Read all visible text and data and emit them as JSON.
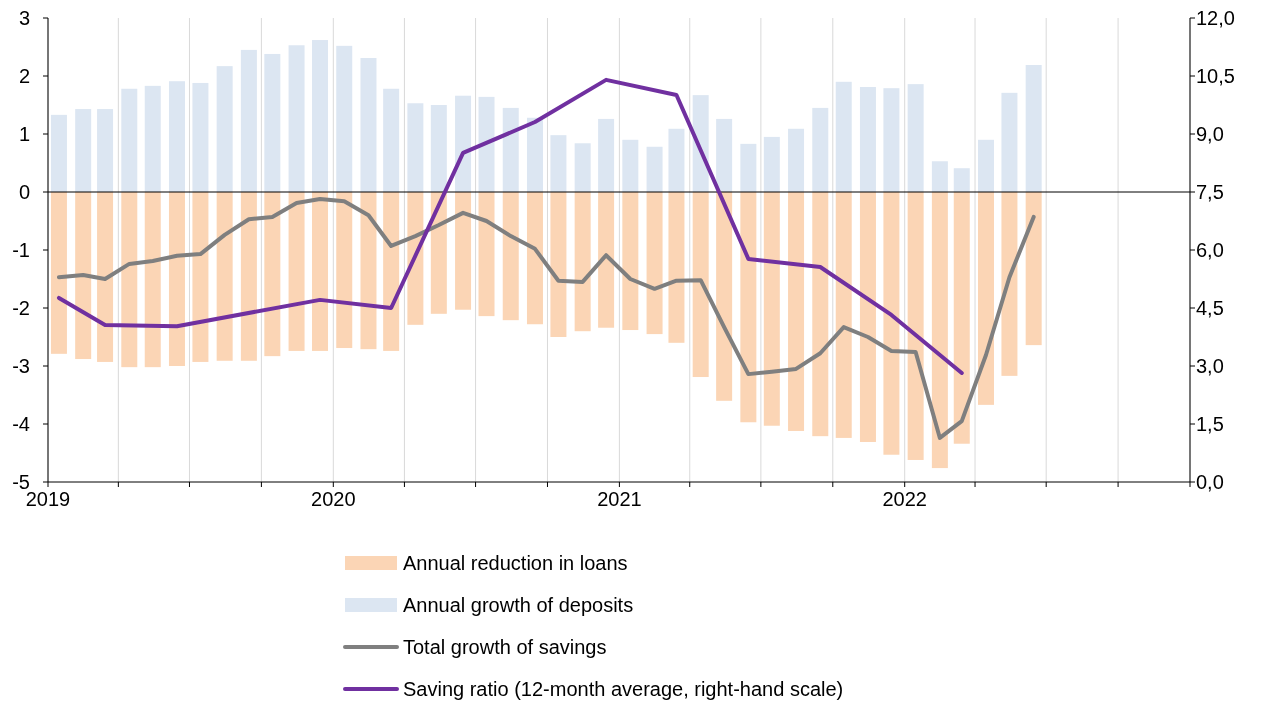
{
  "chart_data": {
    "type": "bar",
    "stacked": true,
    "legend": "bottom",
    "grid": "x",
    "xlim": [
      "2019-01-01",
      "2023-01-01"
    ],
    "xticks": [
      {
        "value": "2019-01-01",
        "label": "2019"
      },
      {
        "value": "2019-04-01",
        "label": null
      },
      {
        "value": "2019-07-01",
        "label": null
      },
      {
        "value": "2019-10-01",
        "label": null
      },
      {
        "value": "2020-01-01",
        "label": "2020"
      },
      {
        "value": "2020-04-01",
        "label": null
      },
      {
        "value": "2020-07-01",
        "label": null
      },
      {
        "value": "2020-10-01",
        "label": null
      },
      {
        "value": "2021-01-01",
        "label": "2021"
      },
      {
        "value": "2021-04-01",
        "label": null
      },
      {
        "value": "2021-07-01",
        "label": null
      },
      {
        "value": "2021-10-01",
        "label": null
      },
      {
        "value": "2022-01-01",
        "label": "2022"
      },
      {
        "value": "2022-04-01",
        "label": null
      },
      {
        "value": "2022-07-01",
        "label": null
      },
      {
        "value": "2022-10-01",
        "label": null
      },
      {
        "value": "2023-01-01",
        "label": null
      }
    ],
    "ylim": [
      -5,
      3
    ],
    "yticks": [
      -5,
      -4,
      -3,
      -2,
      -1,
      0,
      1,
      2,
      3
    ],
    "y2lim": [
      0,
      12
    ],
    "y2ticks": [
      {
        "value": 0,
        "label": "0,0"
      },
      {
        "value": 1.5,
        "label": "1,5"
      },
      {
        "value": 3,
        "label": "3,0"
      },
      {
        "value": 4.5,
        "label": "4,5"
      },
      {
        "value": 6,
        "label": "6,0"
      },
      {
        "value": 7.5,
        "label": "7,5"
      },
      {
        "value": 9,
        "label": "9,0"
      },
      {
        "value": 10.5,
        "label": "10,5"
      },
      {
        "value": 12,
        "label": "12,0"
      }
    ],
    "x": [
      "2019-01-15",
      "2019-02-15",
      "2019-03-15",
      "2019-04-15",
      "2019-05-15",
      "2019-06-15",
      "2019-07-15",
      "2019-08-15",
      "2019-09-15",
      "2019-10-15",
      "2019-11-15",
      "2019-12-15",
      "2020-01-15",
      "2020-02-15",
      "2020-03-15",
      "2020-04-15",
      "2020-05-15",
      "2020-06-15",
      "2020-07-15",
      "2020-08-15",
      "2020-09-15",
      "2020-10-15",
      "2020-11-15",
      "2020-12-15",
      "2021-01-15",
      "2021-02-15",
      "2021-03-15",
      "2021-04-15",
      "2021-05-15",
      "2021-06-15",
      "2021-07-15",
      "2021-08-15",
      "2021-09-15",
      "2021-10-15",
      "2021-11-15",
      "2021-12-15",
      "2022-01-15",
      "2022-02-15",
      "2022-03-15",
      "2022-04-15",
      "2022-05-15",
      "2022-06-15"
    ],
    "series": [
      {
        "name": "Annual reduction in loans",
        "color": "#fbd5b5",
        "values": [
          -2.79,
          -2.88,
          -2.93,
          -3.02,
          -3.02,
          -3.0,
          -2.93,
          -2.91,
          -2.91,
          -2.83,
          -2.74,
          -2.74,
          -2.69,
          -2.71,
          -2.74,
          -2.29,
          -2.1,
          -2.03,
          -2.14,
          -2.21,
          -2.28,
          -2.5,
          -2.4,
          -2.34,
          -2.38,
          -2.45,
          -2.6,
          -3.19,
          -3.6,
          -3.97,
          -4.03,
          -4.12,
          -4.21,
          -4.24,
          -4.31,
          -4.53,
          -4.62,
          -4.76,
          -4.34,
          -3.67,
          -3.17,
          -2.64
        ]
      },
      {
        "name": "Annual growth of deposits",
        "color": "#dce6f2",
        "values": [
          1.33,
          1.43,
          1.43,
          1.78,
          1.83,
          1.91,
          1.88,
          2.17,
          2.45,
          2.38,
          2.53,
          2.62,
          2.52,
          2.31,
          1.78,
          1.53,
          1.5,
          1.66,
          1.64,
          1.45,
          1.28,
          0.98,
          0.84,
          1.26,
          0.9,
          0.78,
          1.09,
          1.67,
          1.26,
          0.83,
          0.95,
          1.09,
          1.45,
          1.9,
          1.81,
          1.79,
          1.86,
          0.53,
          0.41,
          0.9,
          1.71,
          2.19
        ]
      },
      {
        "name": "Total growth of savings",
        "type": "line",
        "color": "#7f7f7f",
        "values": [
          -1.47,
          -1.43,
          -1.5,
          -1.24,
          -1.19,
          -1.1,
          -1.07,
          -0.74,
          -0.47,
          -0.43,
          -0.19,
          -0.12,
          -0.16,
          -0.4,
          -0.93,
          -0.76,
          -0.57,
          -0.36,
          -0.5,
          -0.76,
          -0.98,
          -1.53,
          -1.55,
          -1.09,
          -1.5,
          -1.67,
          -1.53,
          -1.52,
          -2.33,
          -3.14,
          -3.1,
          -3.05,
          -2.78,
          -2.33,
          -2.5,
          -2.74,
          -2.76,
          -4.24,
          -3.95,
          -2.81,
          -1.47,
          -0.43
        ]
      },
      {
        "name": "Saving ratio (12-month average, right-hand scale)",
        "type": "line",
        "axis": "y2",
        "color": "#7030a0",
        "x": [
          "2019-01-15",
          "2019-03-15",
          "2019-06-15",
          "2019-12-15",
          "2020-03-15",
          "2020-06-15",
          "2020-09-15",
          "2020-12-15",
          "2021-03-15",
          "2021-06-15",
          "2021-09-15",
          "2021-12-15",
          "2022-03-15"
        ],
        "values": [
          4.76,
          4.06,
          4.03,
          4.71,
          4.5,
          8.51,
          9.31,
          10.4,
          10.01,
          5.77,
          5.56,
          4.32,
          2.82
        ]
      }
    ]
  }
}
